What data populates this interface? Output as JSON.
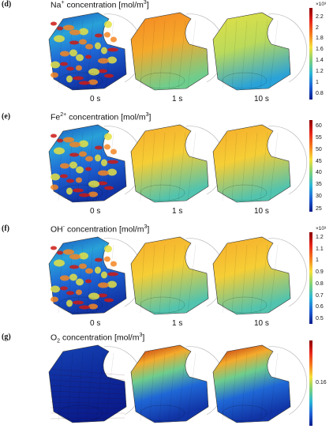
{
  "panels": [
    {
      "id": "d",
      "label": "(d)",
      "title_main": "Na",
      "title_sup": "+",
      "title_sub": "",
      "title_rest": " concentration [mol/m",
      "title_unit_sup": "3",
      "title_end": "]",
      "times": [
        "0 s",
        "1 s",
        "10 s"
      ],
      "colorbar_multiplier": "×10³",
      "ticks": [
        "2.2",
        "2",
        "1.8",
        "1.6",
        "1.4",
        "1.2",
        "1",
        "0.8"
      ],
      "tick_frac": [
        0.1,
        0.22,
        0.34,
        0.46,
        0.58,
        0.7,
        0.82,
        0.94
      ],
      "snapshot_levels": [
        0.45,
        0.35,
        0.5
      ]
    },
    {
      "id": "e",
      "label": "(e)",
      "title_main": "Fe",
      "title_sup": "2+",
      "title_sub": "",
      "title_rest": " concentration [mol/m",
      "title_unit_sup": "3",
      "title_end": "]",
      "times": [
        "0 s",
        "1 s",
        "10 s"
      ],
      "colorbar_multiplier": "",
      "ticks": [
        "60",
        "55",
        "50",
        "45",
        "40",
        "35",
        "30",
        "25"
      ],
      "tick_frac": [
        0.07,
        0.2,
        0.33,
        0.46,
        0.58,
        0.71,
        0.84,
        0.97
      ],
      "snapshot_levels": [
        0.5,
        0.4,
        0.4
      ]
    },
    {
      "id": "f",
      "label": "(f)",
      "title_main": "OH",
      "title_sup": "-",
      "title_sub": "",
      "title_rest": " concentration [mol/m",
      "title_unit_sup": "3",
      "title_end": "]",
      "times": [
        "0 s",
        "1 s",
        "10 s"
      ],
      "colorbar_multiplier": "×10³",
      "ticks": [
        "1.2",
        "1.1",
        "1",
        "0.9",
        "0.8",
        "0.7",
        "0.6",
        "0.5"
      ],
      "tick_frac": [
        0.06,
        0.19,
        0.31,
        0.44,
        0.57,
        0.7,
        0.82,
        0.95
      ],
      "snapshot_levels": [
        0.5,
        0.4,
        0.4
      ]
    },
    {
      "id": "g",
      "label": "(g)",
      "title_main": "O",
      "title_sup": "",
      "title_sub": "2",
      "title_rest": " concentration [mol/m",
      "title_unit_sup": "3",
      "title_end": "]",
      "times": [
        "",
        "",
        ""
      ],
      "colorbar_multiplier": "",
      "ticks": [
        "0.16"
      ],
      "tick_frac": [
        0.5
      ],
      "snapshot_levels": [
        0.97,
        0.3,
        0.3
      ]
    }
  ],
  "colors": {
    "colormap": [
      "#8b0000",
      "#e8251b",
      "#f57c1f",
      "#f6e23a",
      "#7fd27a",
      "#2cb7d8",
      "#1e63d6",
      "#0a1c8c"
    ]
  }
}
